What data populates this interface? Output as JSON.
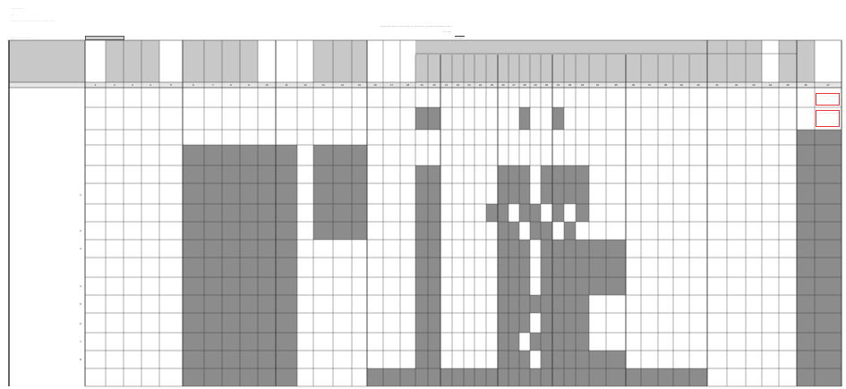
{
  "header": {
    "line1": "·····  ········ ·",
    "line2": "····",
    "line3": "·········· ·· ········· ········ ·· ········ ······",
    "field_label": "······· ········ ···· :",
    "title": "······ ········ ····· ······· ·· ··· ······ · ······ ··········· ·····",
    "subtitle": "··· ····",
    "subtitle2": "·········"
  },
  "column_numbers": [
    "1",
    "2",
    "3",
    "4",
    "5",
    "6",
    "7",
    "8",
    "9",
    "10",
    "11",
    "12",
    "13",
    "14",
    "15",
    "16",
    "17",
    "18",
    "19",
    "20",
    "21",
    "22",
    "23",
    "24",
    "25",
    "26",
    "27",
    "28",
    "29",
    "30",
    "31",
    "32",
    "33",
    "34",
    "35",
    "36",
    "37",
    "38",
    "39",
    "40",
    "41",
    "42",
    "43",
    "44",
    "45",
    "46",
    "47",
    "48"
  ],
  "row_numbers": [
    "1",
    "2",
    "3",
    "4",
    "5",
    "6",
    "7",
    "8"
  ],
  "notes": [
    "····· ········ ··· ······ ···",
    "····· ········ ··· ······ ···"
  ],
  "colors": {
    "shade": "#8c8c8c",
    "header_shade": "#c8c8c8",
    "grid": "#333333",
    "note_border": "#e33333"
  }
}
